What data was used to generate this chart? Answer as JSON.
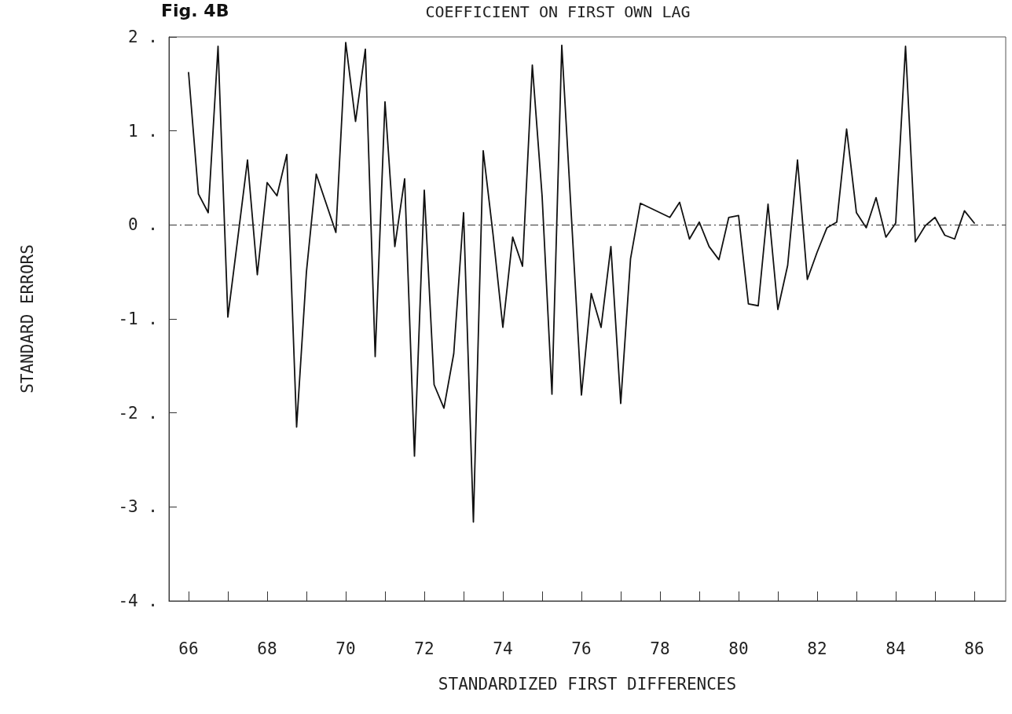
{
  "chart_data": {
    "type": "line",
    "title": "COEFFICIENT ON FIRST OWN LAG",
    "xlabel": "STANDARDIZED FIRST DIFFERENCES",
    "ylabel": "STANDARD ERRORS",
    "annotations": [
      "Fig. 4B"
    ],
    "x": [
      66,
      66.25,
      66.5,
      66.75,
      67,
      67.25,
      67.5,
      67.75,
      68,
      68.25,
      68.5,
      68.75,
      69,
      69.25,
      69.5,
      69.75,
      70,
      70.25,
      70.5,
      70.75,
      71,
      71.25,
      71.5,
      71.75,
      72,
      72.25,
      72.5,
      72.75,
      73,
      73.25,
      73.5,
      73.75,
      74,
      74.25,
      74.5,
      74.75,
      75,
      75.25,
      75.5,
      75.75,
      76,
      76.25,
      76.5,
      76.75,
      77,
      77.25,
      77.5,
      77.75,
      78,
      78.25,
      78.5,
      78.75,
      79,
      79.25,
      79.5,
      79.75,
      80,
      80.25,
      80.5,
      80.75,
      81,
      81.25,
      81.5,
      81.75,
      82,
      82.25,
      82.5,
      82.75,
      83,
      83.25,
      83.5,
      83.75,
      84,
      84.25,
      84.5,
      84.75,
      85,
      85.25,
      85.5,
      85.75,
      86
    ],
    "series": [
      {
        "color": "#111111",
        "values": [
          1.62,
          0.33,
          0.13,
          1.9,
          -0.98,
          -0.15,
          0.69,
          -0.53,
          0.45,
          0.31,
          0.75,
          -2.15,
          -0.5,
          0.54,
          0.23,
          -0.08,
          1.94,
          1.1,
          1.87,
          -1.4,
          1.31,
          -0.23,
          0.49,
          -2.46,
          0.37,
          -1.7,
          -1.95,
          -1.37,
          0.13,
          -3.16,
          0.79,
          -0.1,
          -1.09,
          -0.13,
          -0.44,
          1.7,
          0.3,
          -1.8,
          1.91,
          0.05,
          -1.81,
          -0.73,
          -1.09,
          -0.23,
          -1.9,
          -0.36,
          0.23,
          0.18,
          0.13,
          0.08,
          0.24,
          -0.15,
          0.03,
          -0.23,
          -0.37,
          0.08,
          0.1,
          -0.84,
          -0.86,
          0.22,
          -0.9,
          -0.43,
          0.69,
          -0.58,
          -0.29,
          -0.03,
          0.03,
          1.02,
          0.13,
          -0.03,
          0.29,
          -0.13,
          0.02,
          1.9,
          -0.18,
          -0.01,
          0.08,
          -0.11,
          -0.15,
          0.15,
          0.02
        ]
      }
    ],
    "xlim": [
      65.5,
      86.8
    ],
    "xticks": [
      66,
      {
        "value": 67,
        "label": null
      },
      68,
      {
        "value": 69,
        "label": null
      },
      70,
      {
        "value": 71,
        "label": null
      },
      72,
      {
        "value": 73,
        "label": null
      },
      74,
      {
        "value": 75,
        "label": null
      },
      76,
      {
        "value": 77,
        "label": null
      },
      78,
      {
        "value": 79,
        "label": null
      },
      80,
      {
        "value": 81,
        "label": null
      },
      82,
      {
        "value": 83,
        "label": null
      },
      84,
      {
        "value": 85,
        "label": null
      },
      86
    ],
    "ylim": [
      -4,
      2
    ],
    "yticks": [
      {
        "value": -4,
        "label": "-4 ."
      },
      {
        "value": -3,
        "label": "-3 ."
      },
      {
        "value": -2,
        "label": "-2 ."
      },
      {
        "value": -1,
        "label": "-1 ."
      },
      {
        "value": 0,
        "label": "0 ."
      },
      {
        "value": 1,
        "label": "1 ."
      },
      {
        "value": 2,
        "label": "2 ."
      }
    ],
    "ref_lines": [
      {
        "axis": "y",
        "value": 0,
        "line_style": "dashed",
        "color": "#333333"
      }
    ],
    "grid": false,
    "marker": "none",
    "line_style": "solid"
  }
}
